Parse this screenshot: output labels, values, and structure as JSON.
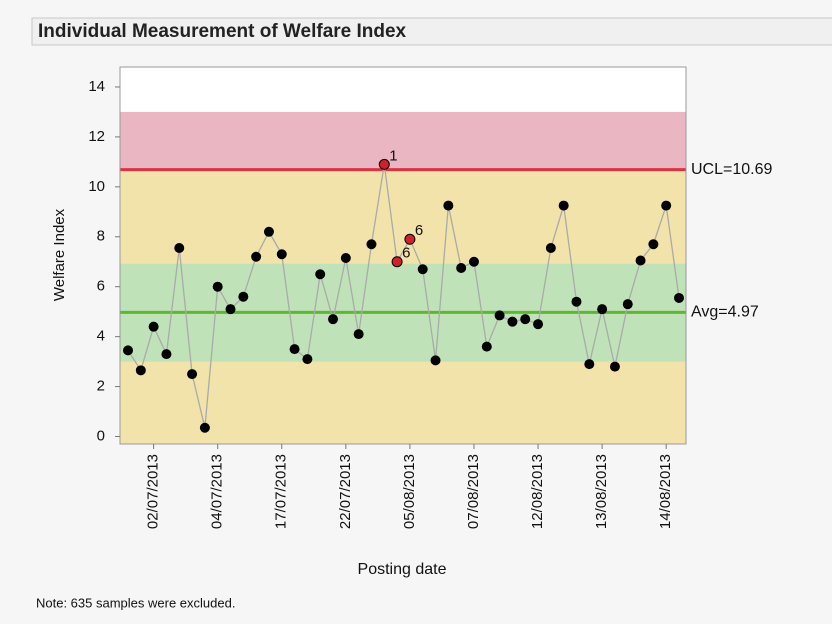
{
  "chart_data": {
    "type": "control",
    "title": "Individual Measurement of Welfare Index",
    "y_label": "Welfare Index",
    "x_label": "Posting date",
    "note": "Note: 635 samples were excluded.",
    "categories": [
      null,
      null,
      "02/07/2013",
      null,
      null,
      null,
      null,
      "04/07/2013",
      null,
      null,
      null,
      null,
      "17/07/2013",
      null,
      null,
      null,
      null,
      "22/07/2013",
      null,
      null,
      null,
      null,
      "05/08/2013",
      null,
      null,
      null,
      null,
      "07/08/2013",
      null,
      null,
      null,
      null,
      "12/08/2013",
      null,
      null,
      null,
      null,
      "13/08/2013",
      null,
      null,
      null,
      null,
      "14/08/2013",
      null
    ],
    "series": [
      {
        "color": "#000000",
        "line_color": "#aaaaaa",
        "values": [
          3.45,
          2.65,
          4.4,
          3.3,
          7.55,
          2.5,
          0.35,
          6.0,
          5.1,
          5.6,
          7.2,
          8.2,
          7.3,
          3.5,
          3.1,
          6.5,
          4.7,
          7.15,
          4.1,
          7.7,
          10.9,
          7.0,
          7.9,
          6.7,
          3.05,
          9.25,
          6.75,
          7.0,
          3.6,
          4.85,
          4.6,
          4.7,
          4.5,
          7.55,
          9.25,
          5.4,
          2.9,
          5.1,
          2.8,
          5.3,
          7.05,
          7.7,
          9.25,
          5.55
        ]
      }
    ],
    "flags": [
      {
        "index": 20,
        "text": "1"
      },
      {
        "index": 21,
        "text": "6"
      },
      {
        "index": 22,
        "text": "6"
      }
    ],
    "flag_color": "#d0202a",
    "ucl": {
      "value": 10.69,
      "label": "UCL=10.69",
      "color": "#d9333f"
    },
    "avg": {
      "value": 4.97,
      "label": "Avg=4.97",
      "color": "#5cb82e"
    },
    "zones": [
      {
        "from": 10.69,
        "to": 13,
        "color": "#e9b6c1"
      },
      {
        "from": -0.3,
        "to": 10.69,
        "color": "#f1e3a9"
      },
      {
        "from": 3.0,
        "to": 6.92,
        "color": "#c0e2b8"
      }
    ],
    "ylim": [
      -0.3,
      14.8
    ],
    "yticks": [
      0,
      2,
      4,
      6,
      8,
      10,
      12,
      14
    ]
  }
}
